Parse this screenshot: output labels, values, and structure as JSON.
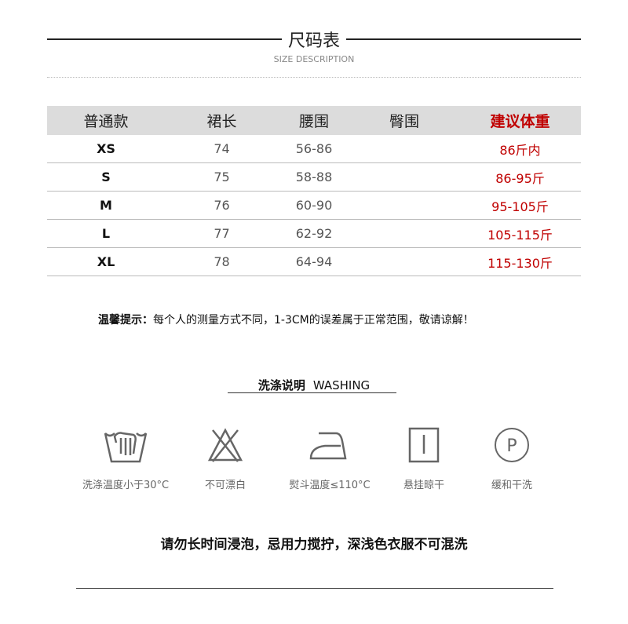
{
  "header": {
    "title": "尺码表",
    "subtitle": "SIZE DESCRIPTION"
  },
  "table": {
    "headers": [
      "普通款",
      "裙长",
      "腰围",
      "臀围",
      "建议体重"
    ],
    "rows": [
      {
        "size": "XS",
        "length": "74",
        "waist": "56-86",
        "hip": "",
        "weight": "86斤内"
      },
      {
        "size": "S",
        "length": "75",
        "waist": "58-88",
        "hip": "",
        "weight": "86-95斤"
      },
      {
        "size": "M",
        "length": "76",
        "waist": "60-90",
        "hip": "",
        "weight": "95-105斤"
      },
      {
        "size": "L",
        "length": "77",
        "waist": "62-92",
        "hip": "",
        "weight": "105-115斤"
      },
      {
        "size": "XL",
        "length": "78",
        "waist": "64-94",
        "hip": "",
        "weight": "115-130斤"
      }
    ],
    "highlight_color": "#c00000"
  },
  "tip": {
    "label": "温馨提示：",
    "text": "每个人的测量方式不同，1-3CM的误差属于正常范围，敬请谅解！"
  },
  "washing": {
    "title_cn": "洗涤说明",
    "title_en": "WASHING",
    "icons": [
      {
        "icon": "hand-wash-icon",
        "label": "洗涤温度小于30°C"
      },
      {
        "icon": "no-bleach-icon",
        "label": "不可漂白"
      },
      {
        "icon": "iron-icon",
        "label": "熨斗温度≤110°C"
      },
      {
        "icon": "hang-dry-icon",
        "label": "悬挂晾干"
      },
      {
        "icon": "dry-clean-icon",
        "label": "缓和干洗"
      }
    ],
    "note": "请勿长时间浸泡，忌用力搅拧，深浅色衣服不可混洗"
  }
}
